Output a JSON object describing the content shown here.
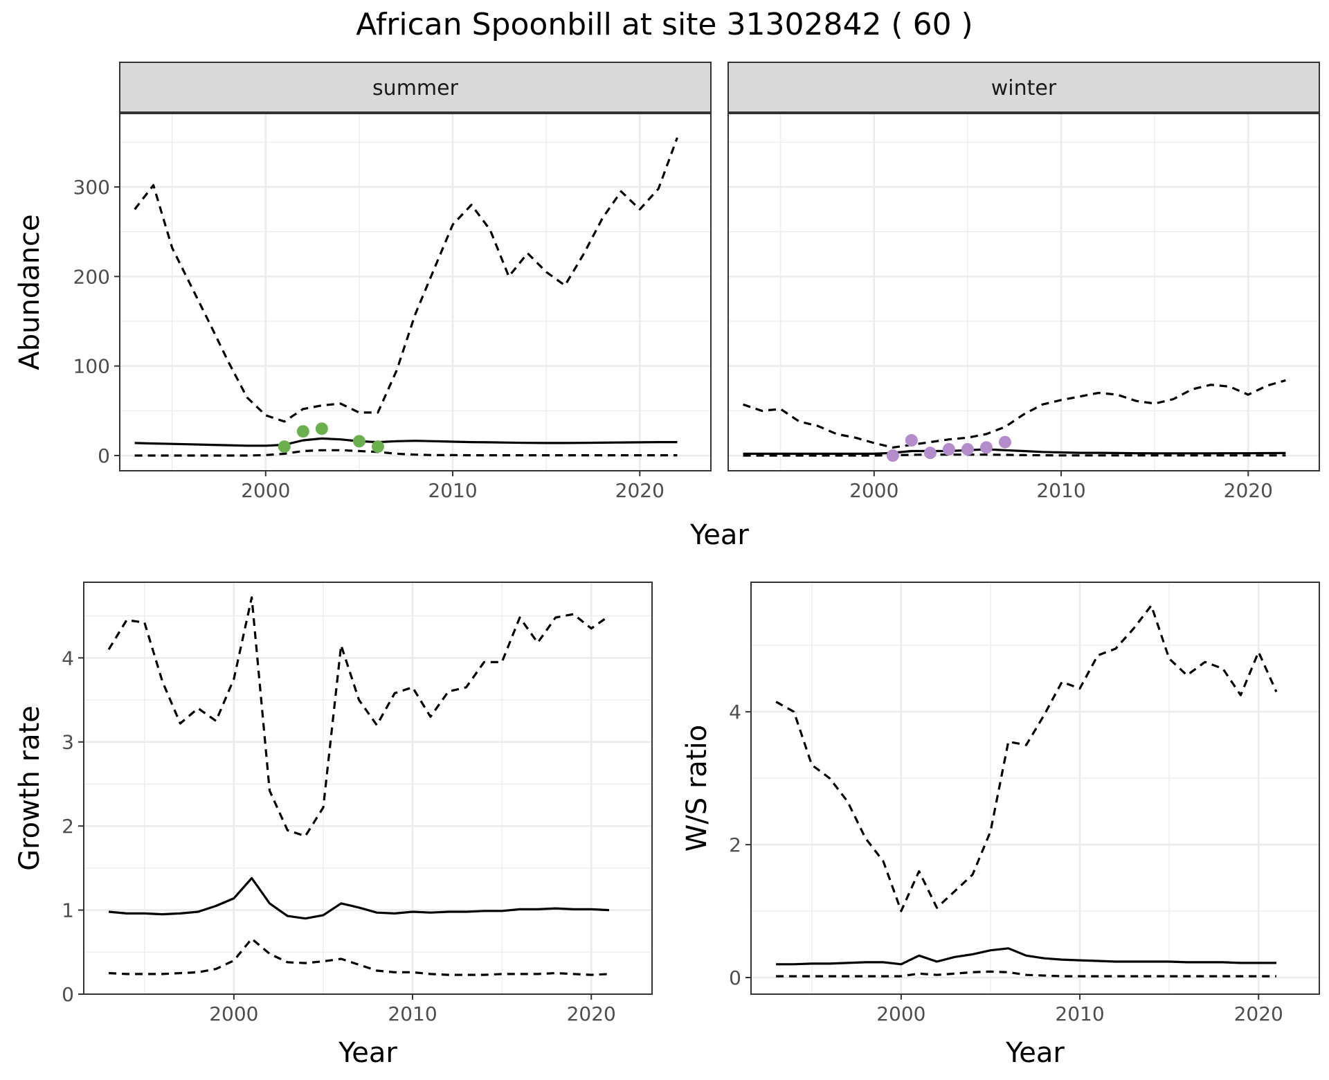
{
  "title": "African Spoonbill at site 31302842 ( 60 )",
  "colors": {
    "summer_points": "#6ab04c",
    "winter_points": "#b48ccc",
    "lines": "#000000",
    "strip_fill": "#d9d9d9",
    "grid": "#ebebeb"
  },
  "chart_data": [
    {
      "type": "line",
      "facet": "summer",
      "xlabel": "Year",
      "ylabel": "Abundance",
      "xlim": [
        1992.2,
        2023.8
      ],
      "ylim": [
        -17,
        382
      ],
      "xticks": [
        2000,
        2010,
        2020
      ],
      "yticks": [
        0,
        100,
        200,
        300
      ],
      "grid": true,
      "series": [
        {
          "role": "mean",
          "style": "solid",
          "x": [
            1993,
            1994,
            1995,
            1996,
            1997,
            1998,
            1999,
            2000,
            2001,
            2002,
            2003,
            2004,
            2005,
            2006,
            2007,
            2008,
            2009,
            2010,
            2011,
            2012,
            2013,
            2014,
            2015,
            2016,
            2017,
            2018,
            2019,
            2020,
            2021,
            2022
          ],
          "y": [
            14,
            13.5,
            13,
            12.5,
            12,
            11.5,
            11,
            11,
            12,
            17,
            19,
            18,
            16,
            15,
            16,
            16.5,
            16,
            15.5,
            15,
            14.8,
            14.5,
            14.2,
            14,
            14,
            14.2,
            14.4,
            14.6,
            14.8,
            15,
            15
          ]
        },
        {
          "role": "upper",
          "style": "dashed",
          "x": [
            1993,
            1994,
            1995,
            1996,
            1997,
            1998,
            1999,
            2000,
            2001,
            2002,
            2003,
            2004,
            2005,
            2006,
            2007,
            2008,
            2009,
            2010,
            2011,
            2012,
            2013,
            2014,
            2015,
            2016,
            2017,
            2018,
            2019,
            2020,
            2021,
            2022
          ],
          "y": [
            275,
            302,
            232,
            190,
            148,
            105,
            65,
            45,
            38,
            52,
            56,
            58,
            48,
            48,
            95,
            158,
            208,
            258,
            280,
            252,
            200,
            226,
            205,
            190,
            225,
            265,
            295,
            275,
            298,
            355
          ]
        },
        {
          "role": "lower",
          "style": "dashed",
          "x": [
            1993,
            1994,
            1995,
            1996,
            1997,
            1998,
            1999,
            2000,
            2001,
            2002,
            2003,
            2004,
            2005,
            2006,
            2007,
            2008,
            2009,
            2010,
            2011,
            2012,
            2013,
            2014,
            2015,
            2016,
            2017,
            2018,
            2019,
            2020,
            2021,
            2022
          ],
          "y": [
            0,
            0,
            0,
            0,
            0,
            0,
            0,
            0.5,
            2,
            5,
            6,
            6,
            5,
            4,
            2,
            1,
            0.5,
            0.5,
            0.3,
            0.3,
            0.3,
            0.3,
            0.3,
            0.3,
            0.3,
            0.3,
            0.3,
            0.3,
            0.3,
            0.3
          ]
        }
      ],
      "points": {
        "x": [
          2001,
          2002,
          2003,
          2005,
          2006
        ],
        "y": [
          10,
          27,
          30,
          16,
          10
        ],
        "color": "#6ab04c"
      }
    },
    {
      "type": "line",
      "facet": "winter",
      "xlabel": "Year",
      "ylabel": "Abundance",
      "xlim": [
        1992.2,
        2023.8
      ],
      "ylim": [
        -17,
        382
      ],
      "xticks": [
        2000,
        2010,
        2020
      ],
      "yticks": [
        0,
        100,
        200,
        300
      ],
      "grid": true,
      "series": [
        {
          "role": "mean",
          "style": "solid",
          "x": [
            1993,
            1994,
            1995,
            1996,
            1997,
            1998,
            1999,
            2000,
            2001,
            2002,
            2003,
            2004,
            2005,
            2006,
            2007,
            2008,
            2009,
            2010,
            2011,
            2012,
            2013,
            2014,
            2015,
            2016,
            2017,
            2018,
            2019,
            2020,
            2021,
            2022
          ],
          "y": [
            2,
            2,
            2,
            2,
            2,
            2,
            2,
            2,
            3,
            5,
            5,
            5,
            6,
            7,
            6,
            5,
            4,
            3.5,
            3,
            3,
            2.8,
            2.6,
            2.5,
            2.5,
            2.5,
            2.5,
            2.6,
            2.6,
            2.7,
            2.8
          ]
        },
        {
          "role": "upper",
          "style": "dashed",
          "x": [
            1993,
            1994,
            1995,
            1996,
            1997,
            1998,
            1999,
            2000,
            2001,
            2002,
            2003,
            2004,
            2005,
            2006,
            2007,
            2008,
            2009,
            2010,
            2011,
            2012,
            2013,
            2014,
            2015,
            2016,
            2017,
            2018,
            2019,
            2020,
            2021,
            2022
          ],
          "y": [
            57,
            50,
            52,
            38,
            33,
            24,
            20,
            14,
            9,
            12,
            15,
            18,
            20,
            24,
            32,
            46,
            57,
            62,
            66,
            70,
            68,
            61,
            58,
            63,
            74,
            79,
            77,
            68,
            78,
            84
          ]
        },
        {
          "role": "lower",
          "style": "dashed",
          "x": [
            1993,
            1994,
            1995,
            1996,
            1997,
            1998,
            1999,
            2000,
            2001,
            2002,
            2003,
            2004,
            2005,
            2006,
            2007,
            2008,
            2009,
            2010,
            2011,
            2012,
            2013,
            2014,
            2015,
            2016,
            2017,
            2018,
            2019,
            2020,
            2021,
            2022
          ],
          "y": [
            0,
            0,
            0,
            0,
            0,
            0,
            0,
            0,
            0.3,
            0.8,
            1,
            1,
            1,
            1,
            0.8,
            0.5,
            0.3,
            0.2,
            0.2,
            0.2,
            0.2,
            0.2,
            0.2,
            0.2,
            0.2,
            0.2,
            0.2,
            0.2,
            0.2,
            0.2
          ]
        }
      ],
      "points": {
        "x": [
          2001,
          2002,
          2003,
          2004,
          2005,
          2006,
          2007
        ],
        "y": [
          0,
          17,
          3,
          7,
          7,
          9,
          15
        ],
        "color": "#b48ccc"
      }
    },
    {
      "type": "line",
      "xlabel": "Year",
      "ylabel": "Growth rate",
      "xlim": [
        1991.6,
        2023.4
      ],
      "ylim": [
        0,
        4.9
      ],
      "xticks": [
        2000,
        2010,
        2020
      ],
      "yticks": [
        0,
        1,
        2,
        3,
        4
      ],
      "grid": true,
      "series": [
        {
          "role": "mean",
          "style": "solid",
          "x": [
            1993,
            1994,
            1995,
            1996,
            1997,
            1998,
            1999,
            2000,
            2001,
            2002,
            2003,
            2004,
            2005,
            2006,
            2007,
            2008,
            2009,
            2010,
            2011,
            2012,
            2013,
            2014,
            2015,
            2016,
            2017,
            2018,
            2019,
            2020,
            2021
          ],
          "y": [
            0.98,
            0.96,
            0.96,
            0.95,
            0.96,
            0.98,
            1.05,
            1.14,
            1.38,
            1.08,
            0.93,
            0.9,
            0.94,
            1.08,
            1.03,
            0.97,
            0.96,
            0.98,
            0.97,
            0.98,
            0.98,
            0.99,
            0.99,
            1.01,
            1.01,
            1.02,
            1.01,
            1.01,
            1.0
          ]
        },
        {
          "role": "upper",
          "style": "dashed",
          "x": [
            1993,
            1994,
            1995,
            1996,
            1997,
            1998,
            1999,
            2000,
            2001,
            2002,
            2003,
            2004,
            2005,
            2006,
            2007,
            2008,
            2009,
            2010,
            2011,
            2012,
            2013,
            2014,
            2015,
            2016,
            2017,
            2018,
            2019,
            2020,
            2021
          ],
          "y": [
            4.1,
            4.45,
            4.42,
            3.72,
            3.22,
            3.4,
            3.25,
            3.75,
            4.72,
            2.42,
            1.95,
            1.88,
            2.22,
            4.15,
            3.5,
            3.2,
            3.58,
            3.65,
            3.3,
            3.6,
            3.65,
            3.95,
            3.95,
            4.48,
            4.18,
            4.48,
            4.52,
            4.35,
            4.5
          ]
        },
        {
          "role": "lower",
          "style": "dashed",
          "x": [
            1993,
            1994,
            1995,
            1996,
            1997,
            1998,
            1999,
            2000,
            2001,
            2002,
            2003,
            2004,
            2005,
            2006,
            2007,
            2008,
            2009,
            2010,
            2011,
            2012,
            2013,
            2014,
            2015,
            2016,
            2017,
            2018,
            2019,
            2020,
            2021
          ],
          "y": [
            0.25,
            0.24,
            0.24,
            0.24,
            0.25,
            0.26,
            0.3,
            0.4,
            0.66,
            0.48,
            0.38,
            0.37,
            0.39,
            0.42,
            0.35,
            0.28,
            0.26,
            0.26,
            0.24,
            0.23,
            0.23,
            0.23,
            0.24,
            0.24,
            0.24,
            0.25,
            0.24,
            0.23,
            0.24
          ]
        }
      ]
    },
    {
      "type": "line",
      "xlabel": "Year",
      "ylabel": "W/S ratio",
      "xlim": [
        1991.6,
        2023.4
      ],
      "ylim": [
        -0.25,
        5.95
      ],
      "xticks": [
        2000,
        2010,
        2020
      ],
      "yticks": [
        0,
        2,
        4
      ],
      "grid": true,
      "series": [
        {
          "role": "mean",
          "style": "solid",
          "x": [
            1993,
            1994,
            1995,
            1996,
            1997,
            1998,
            1999,
            2000,
            2001,
            2002,
            2003,
            2004,
            2005,
            2006,
            2007,
            2008,
            2009,
            2010,
            2011,
            2012,
            2013,
            2014,
            2015,
            2016,
            2017,
            2018,
            2019,
            2020,
            2021
          ],
          "y": [
            0.2,
            0.2,
            0.21,
            0.21,
            0.22,
            0.23,
            0.23,
            0.2,
            0.33,
            0.24,
            0.31,
            0.35,
            0.41,
            0.44,
            0.33,
            0.29,
            0.27,
            0.26,
            0.25,
            0.24,
            0.24,
            0.24,
            0.24,
            0.23,
            0.23,
            0.23,
            0.22,
            0.22,
            0.22
          ]
        },
        {
          "role": "upper",
          "style": "dashed",
          "x": [
            1993,
            1994,
            1995,
            1996,
            1997,
            1998,
            1999,
            2000,
            2001,
            2002,
            2003,
            2004,
            2005,
            2006,
            2007,
            2008,
            2009,
            2010,
            2011,
            2012,
            2013,
            2014,
            2015,
            2016,
            2017,
            2018,
            2019,
            2020,
            2021
          ],
          "y": [
            4.15,
            4.0,
            3.2,
            3.0,
            2.65,
            2.1,
            1.75,
            1.0,
            1.6,
            1.05,
            1.3,
            1.55,
            2.2,
            3.55,
            3.5,
            3.95,
            4.45,
            4.35,
            4.85,
            4.95,
            5.25,
            5.6,
            4.8,
            4.55,
            4.75,
            4.65,
            4.25,
            4.9,
            4.3
          ]
        },
        {
          "role": "lower",
          "style": "dashed",
          "x": [
            1993,
            1994,
            1995,
            1996,
            1997,
            1998,
            1999,
            2000,
            2001,
            2002,
            2003,
            2004,
            2005,
            2006,
            2007,
            2008,
            2009,
            2010,
            2011,
            2012,
            2013,
            2014,
            2015,
            2016,
            2017,
            2018,
            2019,
            2020,
            2021
          ],
          "y": [
            0.02,
            0.02,
            0.02,
            0.02,
            0.02,
            0.02,
            0.02,
            0.02,
            0.06,
            0.04,
            0.06,
            0.08,
            0.09,
            0.08,
            0.04,
            0.03,
            0.02,
            0.02,
            0.02,
            0.02,
            0.02,
            0.02,
            0.02,
            0.02,
            0.02,
            0.02,
            0.02,
            0.02,
            0.02
          ]
        }
      ]
    }
  ]
}
